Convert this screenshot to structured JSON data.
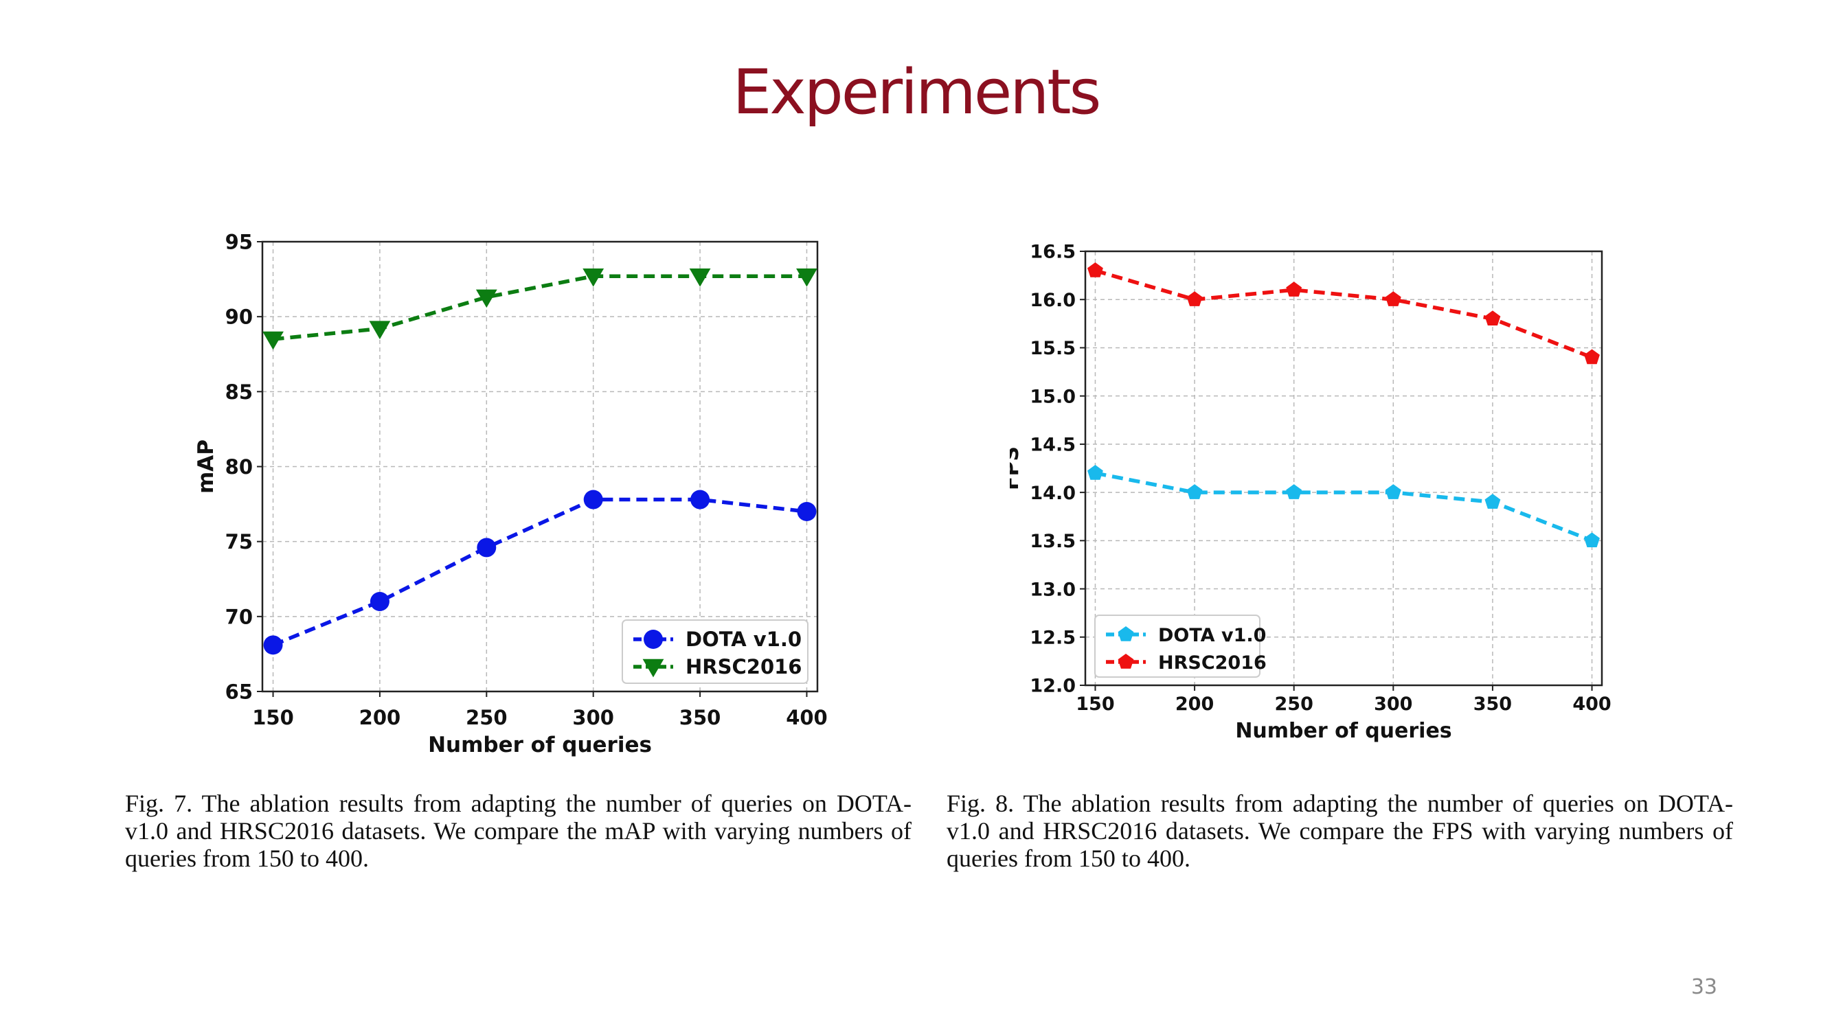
{
  "slide": {
    "title": "Experiments",
    "page_number": "33"
  },
  "captions": {
    "fig7": "Fig. 7.  The ablation results from adapting the number of queries on DOTA-v1.0 and HRSC2016 datasets. We compare the mAP with varying numbers of queries from 150 to 400.",
    "fig8": "Fig. 8.  The ablation results from adapting the number of queries on DOTA-v1.0 and HRSC2016 datasets. We compare the FPS with varying numbers of queries from 150 to 400."
  },
  "chart_data": [
    {
      "type": "line",
      "title": "",
      "xlabel": "Number of queries",
      "ylabel": "mAP",
      "x": [
        150,
        200,
        250,
        300,
        350,
        400
      ],
      "xticks": [
        "150",
        "200",
        "250",
        "300",
        "350",
        "400"
      ],
      "xlim": [
        145,
        405
      ],
      "ylim": [
        65,
        95
      ],
      "yticks": [
        "65",
        "70",
        "75",
        "80",
        "85",
        "90",
        "95"
      ],
      "yticks_values": [
        65,
        70,
        75,
        80,
        85,
        90,
        95
      ],
      "grid": true,
      "legend_position": "lower-right",
      "series": [
        {
          "name": "DOTA v1.0",
          "values": [
            68.1,
            71.0,
            74.6,
            77.8,
            77.8,
            77.0
          ],
          "color": "#0a17e6",
          "marker": "circle",
          "linestyle": "dashed"
        },
        {
          "name": "HRSC2016",
          "values": [
            88.5,
            89.2,
            91.3,
            92.7,
            92.7,
            92.7
          ],
          "color": "#0c7d12",
          "marker": "triangle-down",
          "linestyle": "dashed"
        }
      ]
    },
    {
      "type": "line",
      "title": "",
      "xlabel": "Number of queries",
      "ylabel": "FPS",
      "x": [
        150,
        200,
        250,
        300,
        350,
        400
      ],
      "xticks": [
        "150",
        "200",
        "250",
        "300",
        "350",
        "400"
      ],
      "xlim": [
        145,
        405
      ],
      "ylim": [
        12.0,
        16.5
      ],
      "yticks": [
        "12.0",
        "12.5",
        "13.0",
        "13.5",
        "14.0",
        "14.5",
        "15.0",
        "15.5",
        "16.0",
        "16.5"
      ],
      "yticks_values": [
        12.0,
        12.5,
        13.0,
        13.5,
        14.0,
        14.5,
        15.0,
        15.5,
        16.0,
        16.5
      ],
      "grid": true,
      "legend_position": "lower-left",
      "series": [
        {
          "name": "DOTA v1.0",
          "values": [
            14.2,
            14.0,
            14.0,
            14.0,
            13.9,
            13.5
          ],
          "color": "#19b9ec",
          "marker": "pentagon",
          "linestyle": "dashed"
        },
        {
          "name": "HRSC2016",
          "values": [
            16.3,
            16.0,
            16.1,
            16.0,
            15.8,
            15.4
          ],
          "color": "#ee1111",
          "marker": "pentagon",
          "linestyle": "dashed"
        }
      ]
    }
  ]
}
